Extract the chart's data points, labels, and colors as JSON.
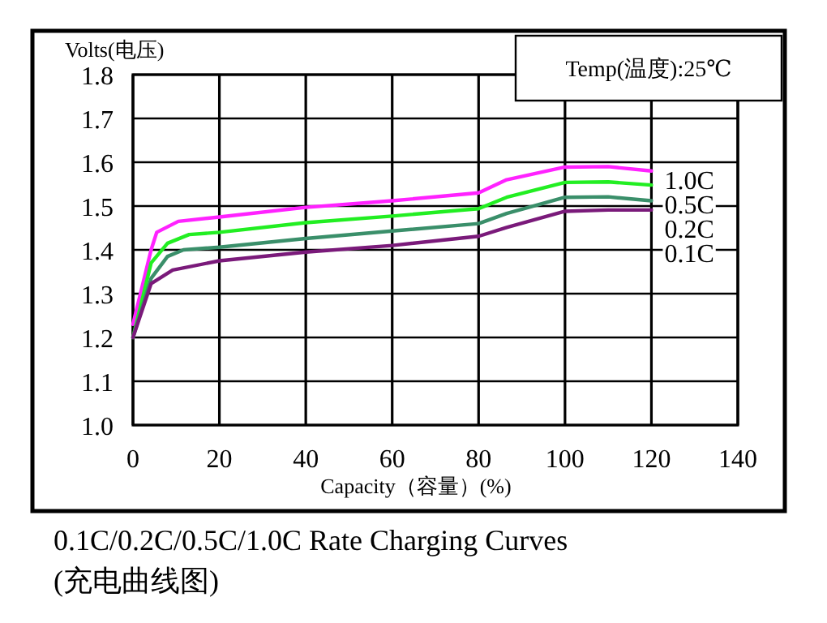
{
  "chart_data": {
    "type": "line",
    "title": "0.1C/0.2C/0.5C/1.0C Rate Charging Curves",
    "subtitle": "(充电曲线图)",
    "xlabel": "Capacity（容量）(%)",
    "ylabel": "Volts(电压)",
    "annotations": [
      "Temp(温度):25℃"
    ],
    "xlim": [
      0,
      140
    ],
    "xticks": [
      0,
      20,
      40,
      60,
      80,
      100,
      120,
      140
    ],
    "ylim": [
      1.0,
      1.8
    ],
    "yticks": [
      {
        "value": 1.0,
        "label": "1.0"
      },
      1.1,
      1.2,
      1.3,
      1.4,
      1.5,
      1.6,
      1.7,
      1.8
    ],
    "grid": true,
    "marker": "none",
    "line_style": "solid",
    "series": [
      {
        "name": "1.0C",
        "color": "#ff22ff",
        "x": [
          0,
          4.2,
          5.5,
          10.5,
          20,
          40,
          60,
          80,
          86.5,
          100,
          110,
          120
        ],
        "values": [
          1.23,
          1.4,
          1.44,
          1.465,
          1.475,
          1.497,
          1.512,
          1.53,
          1.56,
          1.589,
          1.59,
          1.58
        ]
      },
      {
        "name": "0.5C",
        "color": "#22ee22",
        "x": [
          0,
          4.2,
          8,
          13,
          20,
          40,
          60,
          80,
          86.5,
          100,
          110,
          120
        ],
        "values": [
          1.2,
          1.37,
          1.415,
          1.435,
          1.44,
          1.462,
          1.477,
          1.494,
          1.52,
          1.554,
          1.555,
          1.548
        ]
      },
      {
        "name": "0.2C",
        "color": "#3a8f6a",
        "x": [
          0,
          4.2,
          8,
          11.7,
          20,
          40,
          60,
          80,
          86.5,
          100,
          110,
          120
        ],
        "values": [
          1.2,
          1.335,
          1.385,
          1.4,
          1.406,
          1.426,
          1.443,
          1.46,
          1.483,
          1.52,
          1.521,
          1.512
        ]
      },
      {
        "name": "0.1C",
        "color": "#7a1a7a",
        "x": [
          0,
          4.2,
          9.2,
          20,
          40,
          60,
          80,
          86.5,
          100,
          110,
          120
        ],
        "values": [
          1.2,
          1.323,
          1.354,
          1.375,
          1.395,
          1.41,
          1.431,
          1.451,
          1.488,
          1.491,
          1.491
        ]
      }
    ]
  }
}
